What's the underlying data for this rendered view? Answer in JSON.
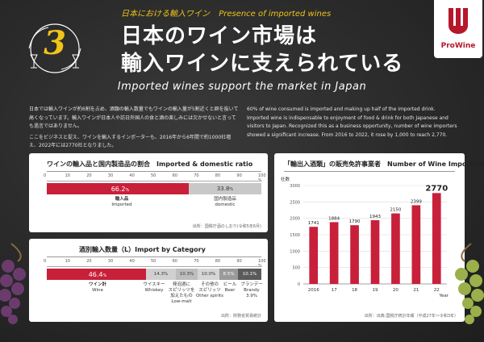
{
  "header": {
    "badge_number": "3",
    "subheading_jp": "日本における輸入ワイン",
    "subheading_en": "Presence of imported wines",
    "title_line1": "日本のワイン市場は",
    "title_line2": "輸入ワインに支えられている",
    "english_title": "Imported wines support the market in Japan",
    "logo_text": "ProWine"
  },
  "intro": {
    "jp_p1": "日本では輸入ワインが約6割を占め、酒類の輸入数量でもワインの輸入量が5割近くと群を抜いて高くなっています。輸入ワインが日本人や訪日外国人の食と酒の楽しみには欠かせないと言っても過言ではありません。",
    "jp_p2": "ここをビジネスと捉え、ワインを輸入するインポーターも、2016年から6年間で約1000社増え、2022年には2770社となりました。",
    "en": "60% of wine consumed is imported and making up half of the imported drink. Imported wine is indispensable to enjoyment of food & drink for both Japanese and visitors to Japan. Recognized this as a business opportunity, number of wine importers showed a significant increase. From 2016 to 2022, it rose by 1,000 to reach 2,770."
  },
  "panel_ratio": {
    "title": "ワインの輸入品と国内製造品の割合　Imported & domestic ratio",
    "ticks": [
      "0",
      "10",
      "20",
      "30",
      "40",
      "50",
      "60",
      "70",
      "80",
      "90",
      "100 %"
    ],
    "imported_value_label": "66.2",
    "imported_unit": "%",
    "domestic_value_label": "33.8",
    "domestic_unit": "%",
    "imported_jp": "輸入品",
    "imported_en": "Imported",
    "domestic_jp": "国内製造品",
    "domestic_en": "domestic",
    "source": "出所：国税庁酒のしおり(令和5年6月)"
  },
  "panel_category": {
    "title": "酒別輸入数量（L）Import by Category",
    "ticks": [
      "0",
      "10",
      "20",
      "30",
      "40",
      "50",
      "60",
      "70",
      "80",
      "90",
      "100 %"
    ],
    "wine_value": "46.4",
    "wine_unit": "%",
    "wine_jp": "ワイン計",
    "wine_en": "Wine",
    "whisky_value": "14.3",
    "whisky_jp": "ウイスキー",
    "whisky_en": "Whiskey",
    "lowmalt_value": "10.3",
    "lowmalt_jp1": "発泡酒に",
    "lowmalt_jp2": "スピリッツを",
    "lowmalt_jp3": "加えたもの",
    "lowmalt_en": "Low-malt",
    "other_value": "10.0",
    "other_jp": "その他の",
    "other_jp2": "スピリッツ",
    "other_en": "Other spirits",
    "beer_value": "8.5",
    "beer_jp": "ビール",
    "beer_en": "Beer",
    "brandy_value": "10.1",
    "brandy_jp": "ブランデー",
    "brandy_en": "Brandy",
    "brandy_sub": "3.9%",
    "pct": "%",
    "source": "出所：財務省貿易統計"
  },
  "chart_data": {
    "type": "bar",
    "title": "「輸出入酒類」の販売免許事業者　Number of Wine Importers",
    "ylabel": "社数",
    "xlabel": "Year",
    "categories": [
      "2016",
      "17",
      "18",
      "19",
      "20",
      "21",
      "22"
    ],
    "values": [
      1741,
      1884,
      1790,
      1943,
      2150,
      2399,
      2770
    ],
    "ylim": [
      0,
      3000
    ],
    "yticks": [
      0,
      500,
      1000,
      1500,
      2000,
      2500,
      3000
    ],
    "bar_color": "#c8203a",
    "source": "出所：出典:国税庁統計年報（平成27年～令和3年）"
  },
  "colors": {
    "accent": "#c8203a",
    "grey_bar": "#c8c8c8",
    "dark_bar": "#5a5a5a",
    "gold": "#f0c419"
  }
}
